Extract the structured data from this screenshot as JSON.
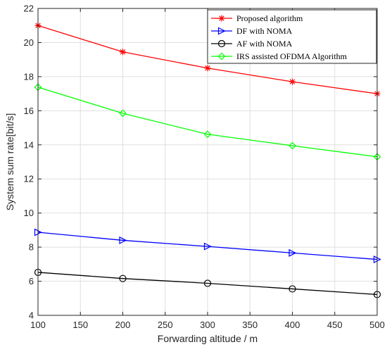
{
  "chart_data": {
    "type": "line",
    "xlabel": "Forwarding altitude / m",
    "ylabel": "System sum rate[bit/s]",
    "xlim": [
      100,
      500
    ],
    "ylim": [
      4,
      22
    ],
    "xticks": [
      100,
      150,
      200,
      250,
      300,
      350,
      400,
      450,
      500
    ],
    "yticks": [
      4,
      6,
      8,
      10,
      12,
      14,
      16,
      18,
      20,
      22
    ],
    "grid": true,
    "legend_position": "top-right",
    "x": [
      100,
      200,
      300,
      400,
      500
    ],
    "series": [
      {
        "name": "Proposed algorithm",
        "marker": "asterisk",
        "color": "#ff0000",
        "values": [
          21.0,
          19.45,
          18.5,
          17.7,
          17.0
        ]
      },
      {
        "name": "DF with NOMA",
        "marker": "triangle-right",
        "color": "#0000ff",
        "values": [
          8.87,
          8.4,
          8.04,
          7.66,
          7.28
        ]
      },
      {
        "name": "AF with NOMA",
        "marker": "circle",
        "color": "#000000",
        "values": [
          6.52,
          6.16,
          5.88,
          5.55,
          5.22
        ]
      },
      {
        "name": "IRS assisted OFDMA Algorithm",
        "marker": "diamond",
        "color": "#00ff00",
        "values": [
          17.38,
          15.85,
          14.62,
          13.95,
          13.3
        ]
      }
    ]
  }
}
